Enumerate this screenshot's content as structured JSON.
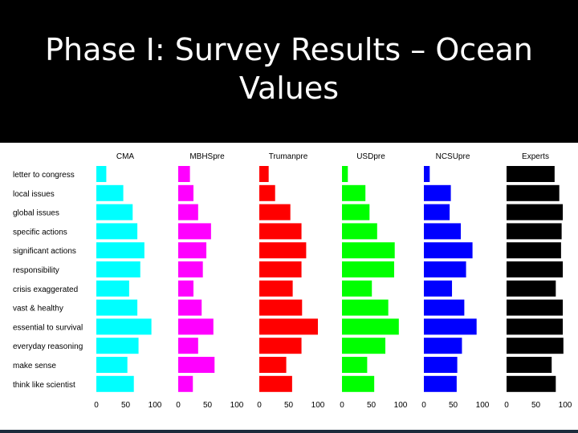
{
  "slide": {
    "title": "Phase I: Survey Results – Ocean Values"
  },
  "chart_data": {
    "type": "bar",
    "orientation": "horizontal",
    "categories": [
      "letter to congress",
      "local issues",
      "global issues",
      "specific actions",
      "significant actions",
      "responsibility",
      "crisis exaggerated",
      "vast & healthy",
      "essential to survival",
      "everyday reasoning",
      "make sense",
      "think like scientist"
    ],
    "xlim": [
      0,
      100
    ],
    "xticks": [
      "0",
      "50",
      "100"
    ],
    "grid": false,
    "series": [
      {
        "name": "CMA",
        "color": "#00ffff",
        "values": [
          17,
          46,
          62,
          70,
          82,
          75,
          56,
          70,
          94,
          72,
          53,
          64
        ]
      },
      {
        "name": "MBHSpre",
        "color": "#ff00ff",
        "values": [
          20,
          26,
          34,
          56,
          48,
          42,
          26,
          40,
          60,
          34,
          62,
          25
        ]
      },
      {
        "name": "Trumanpre",
        "color": "#ff0000",
        "values": [
          16,
          27,
          53,
          72,
          80,
          72,
          57,
          73,
          100,
          72,
          46,
          56
        ]
      },
      {
        "name": "USDpre",
        "color": "#00ff00",
        "values": [
          10,
          40,
          47,
          60,
          90,
          89,
          51,
          79,
          97,
          74,
          43,
          55
        ]
      },
      {
        "name": "NCSUpre",
        "color": "#0000ff",
        "values": [
          10,
          46,
          44,
          63,
          83,
          72,
          48,
          69,
          90,
          65,
          57,
          56
        ]
      },
      {
        "name": "Experts",
        "color": "#000000",
        "values": [
          82,
          90,
          96,
          94,
          93,
          96,
          84,
          96,
          96,
          97,
          77,
          84
        ]
      }
    ]
  }
}
